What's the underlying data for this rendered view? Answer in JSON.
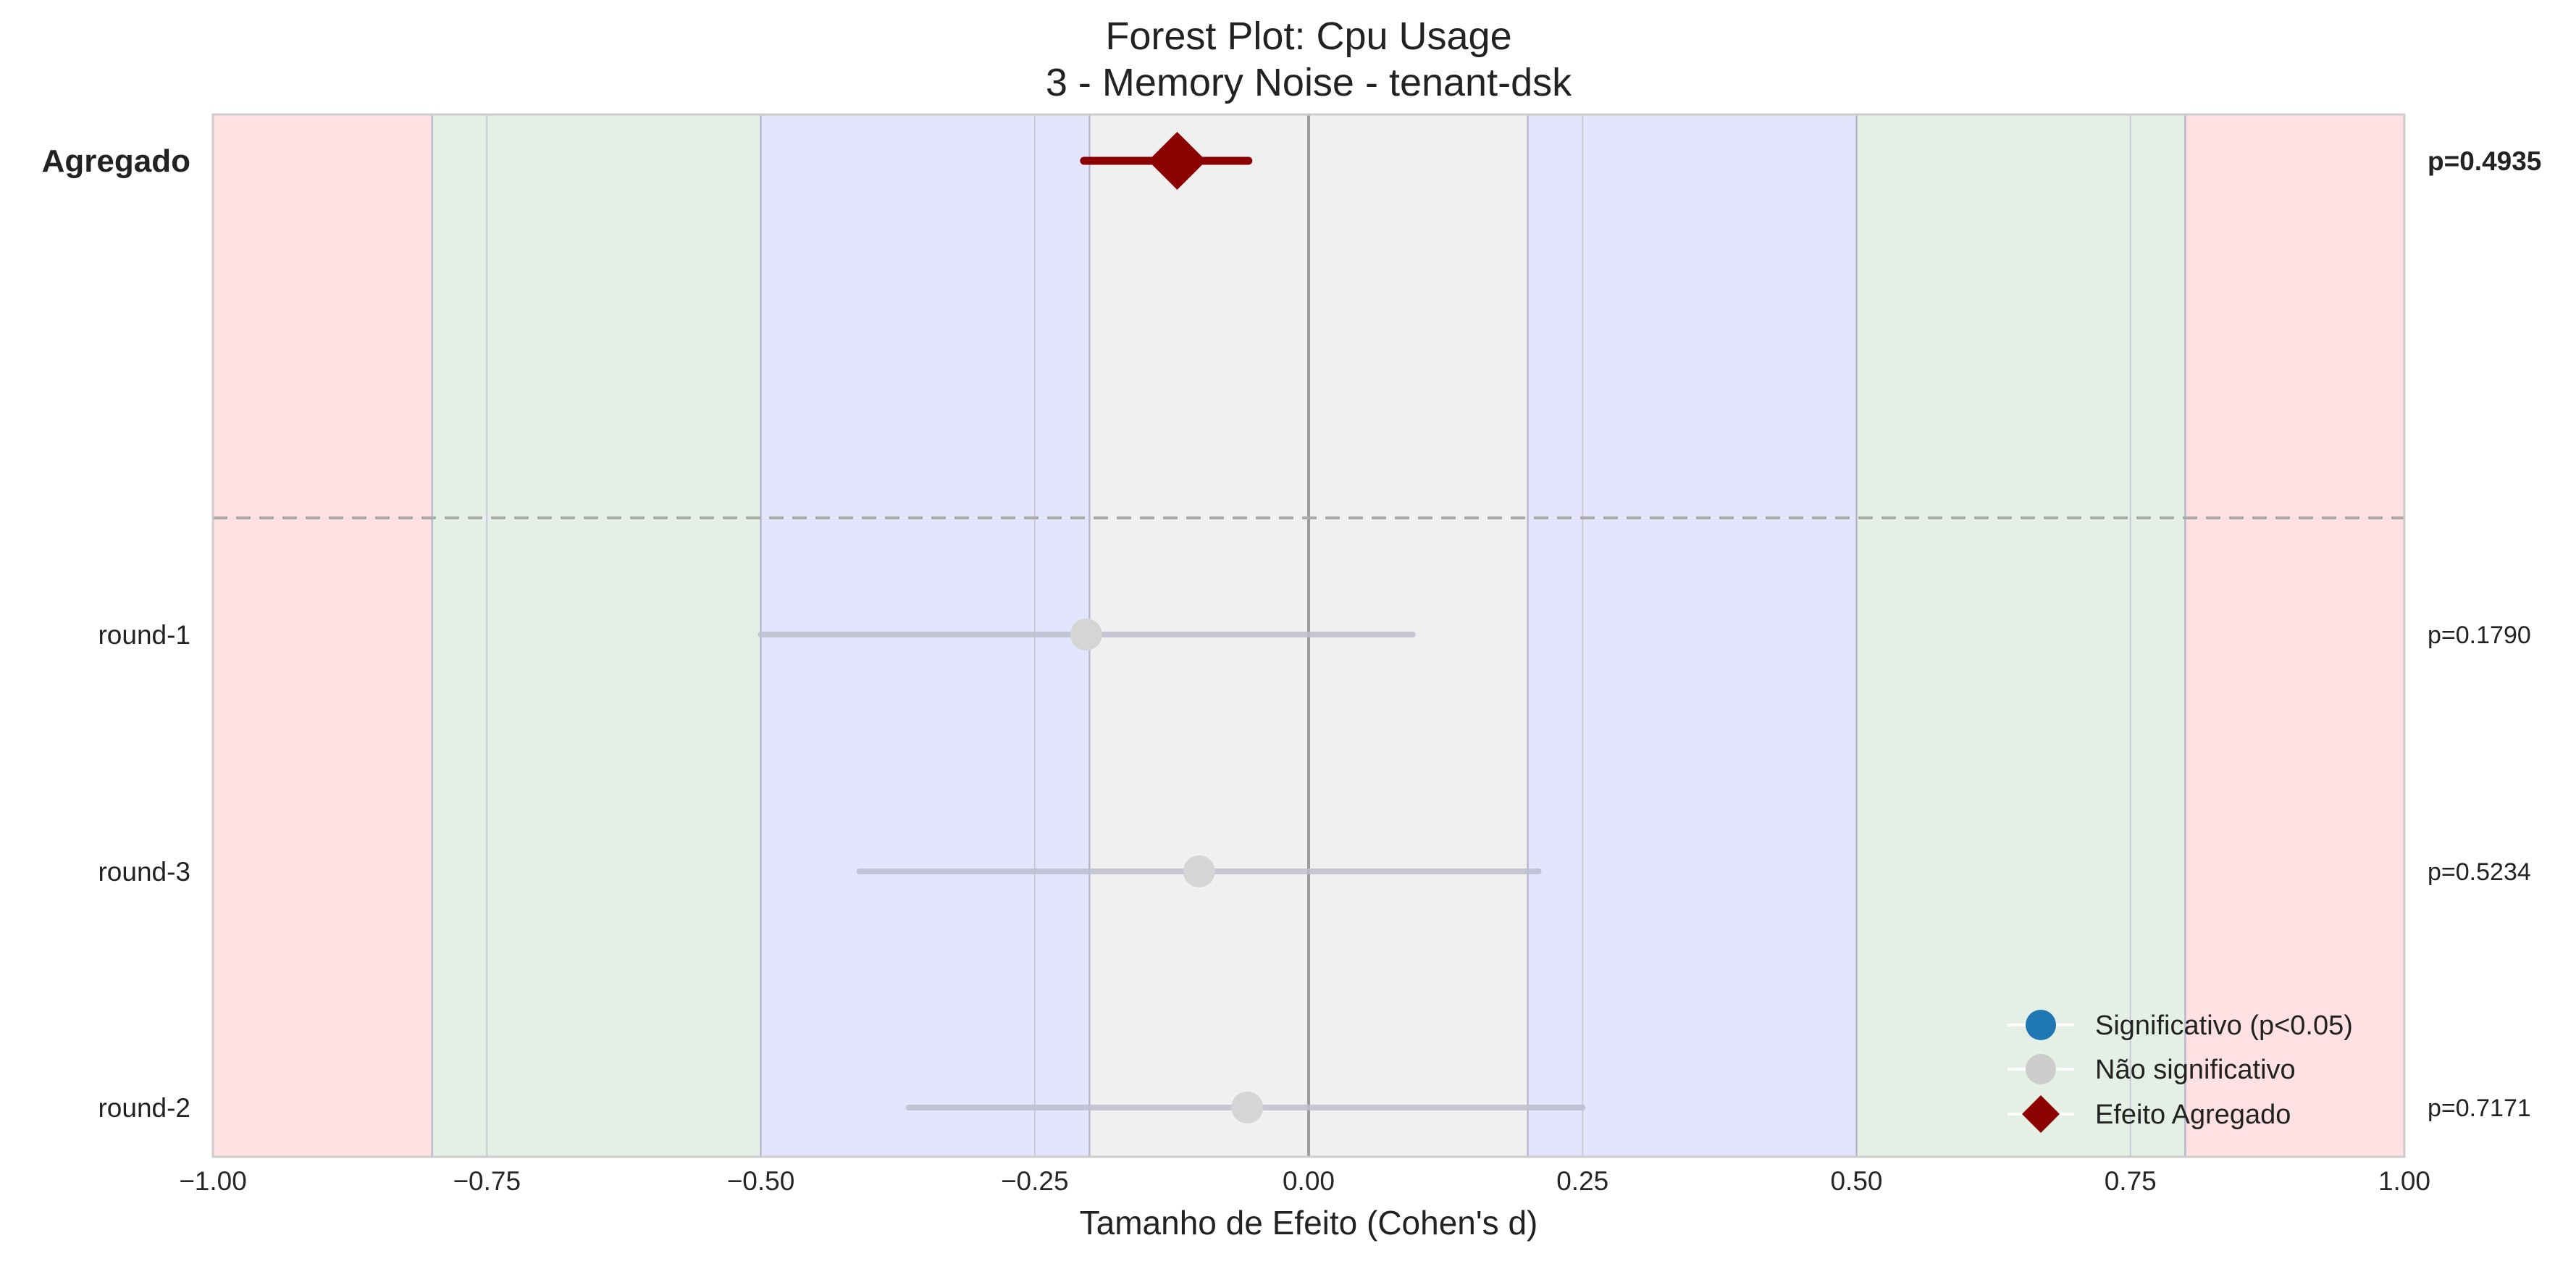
{
  "chart_data": {
    "type": "scatter",
    "subtype": "forest-plot",
    "title_line1": "Forest Plot: Cpu Usage",
    "title_line2": "3 - Memory Noise - tenant-dsk",
    "xlabel": "Tamanho de Efeito (Cohen's d)",
    "xlim": [
      -1.0,
      1.0
    ],
    "xticks": [
      -1.0,
      -0.75,
      -0.5,
      -0.25,
      0.0,
      0.25,
      0.5,
      0.75,
      1.0
    ],
    "xtick_labels": [
      "−1.00",
      "−0.75",
      "−0.50",
      "−0.25",
      "0.00",
      "0.25",
      "0.50",
      "0.75",
      "1.00"
    ],
    "grid": true,
    "aggregate": {
      "label": "Agregado",
      "estimate": -0.12,
      "ci": [
        -0.205,
        -0.055
      ],
      "p_label": "p=0.4935",
      "color": "#8b0000"
    },
    "rows": [
      {
        "label": "round-1",
        "estimate": -0.203,
        "ci": [
          -0.5,
          0.095
        ],
        "p_label": "p=0.1790",
        "significant": false
      },
      {
        "label": "round-3",
        "estimate": -0.1,
        "ci": [
          -0.41,
          0.21
        ],
        "p_label": "p=0.5234",
        "significant": false
      },
      {
        "label": "round-2",
        "estimate": -0.056,
        "ci": [
          -0.365,
          0.25
        ],
        "p_label": "p=0.7171",
        "significant": false
      }
    ],
    "effect_bands": [
      {
        "from": -1.0,
        "to": -0.8,
        "color": "#ffe1e3"
      },
      {
        "from": -0.8,
        "to": -0.5,
        "color": "#e4f0e5"
      },
      {
        "from": -0.5,
        "to": -0.2,
        "color": "#e4e4fd"
      },
      {
        "from": -0.2,
        "to": 0.2,
        "color": "#f0f0f0"
      },
      {
        "from": 0.2,
        "to": 0.5,
        "color": "#e4e4fd"
      },
      {
        "from": 0.5,
        "to": 0.8,
        "color": "#e4f0e5"
      },
      {
        "from": 0.8,
        "to": 1.0,
        "color": "#ffe1e3"
      }
    ],
    "reference_lines": [
      -0.8,
      -0.5,
      -0.2,
      0.2,
      0.5,
      0.8
    ],
    "legend": {
      "placement": "lower-right",
      "entries": [
        {
          "label": "Significativo (p<0.05)",
          "marker": "circle",
          "color": "#1f77b4"
        },
        {
          "label": "Não significativo",
          "marker": "circle",
          "color": "#cccccc"
        },
        {
          "label": "Efeito Agregado",
          "marker": "diamond",
          "color": "#8b0000"
        }
      ]
    },
    "colors": {
      "nonsignificant_marker": "#d5d5d5",
      "nonsignificant_ci": "#bebed0",
      "aggregate": "#8b0000",
      "zero_line": "#9a9a9a",
      "separator": "#aaaaaa"
    }
  }
}
